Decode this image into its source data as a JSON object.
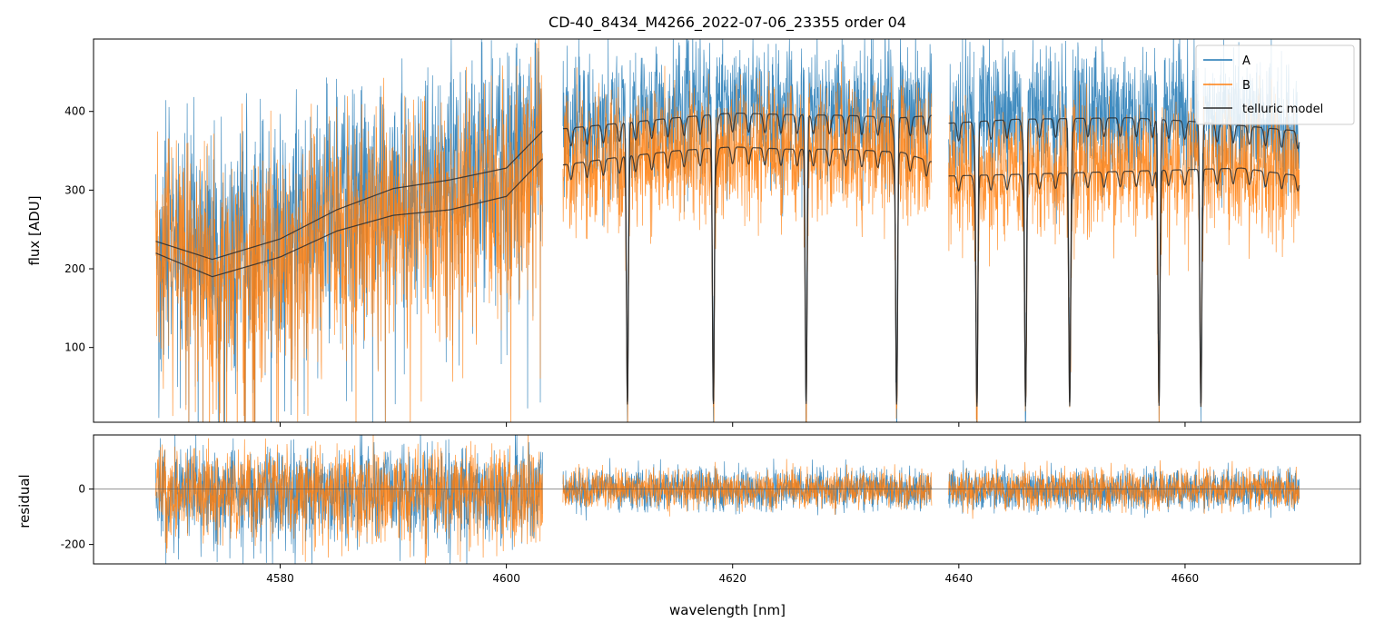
{
  "chart_data": [
    {
      "type": "line",
      "title": "CD-40_8434_M4266_2022-07-06_23355  order 04",
      "xlabel": "",
      "ylabel": "flux [ADU]",
      "xlim": [
        4563.5,
        4675.5
      ],
      "ylim": [
        5,
        492
      ],
      "yticks": [
        100,
        200,
        300,
        400
      ],
      "grid": false,
      "legend": {
        "placement": "top-right",
        "entries": [
          "A",
          "B",
          "telluric model"
        ]
      },
      "segments": [
        [
          4569.0,
          4603.2
        ],
        [
          4605.0,
          4637.6
        ],
        [
          4639.1,
          4670.1
        ]
      ],
      "series": [
        {
          "name": "A",
          "color": "#1f77b4",
          "typical_range": [
            150,
            470
          ]
        },
        {
          "name": "B",
          "color": "#ff7f0e",
          "typical_range": [
            120,
            440
          ]
        },
        {
          "name": "telluric model",
          "color": "#2b2b2b",
          "upper_curve": {
            "x": [
              4569.0,
              4574.0,
              4580.0,
              4585.0,
              4590.0,
              4595.0,
              4600.0,
              4603.2,
              4605.0,
              4610.0,
              4615.0,
              4620.0,
              4625.0,
              4630.0,
              4635.0,
              4637.6,
              4639.1,
              4645.0,
              4650.0,
              4655.0,
              4660.0,
              4665.0,
              4670.1
            ],
            "y": [
              235,
              212,
              238,
              275,
              302,
              313,
              328,
              375,
              378,
              385,
              392,
              398,
              396,
              395,
              392,
              395,
              385,
              390,
              391,
              392,
              388,
              382,
              375
            ]
          },
          "lower_curve": {
            "x": [
              4569.0,
              4574.0,
              4580.0,
              4585.0,
              4590.0,
              4595.0,
              4600.0,
              4603.2,
              4605.0,
              4610.0,
              4615.0,
              4620.0,
              4625.0,
              4630.0,
              4635.0,
              4637.6,
              4639.1,
              4645.0,
              4650.0,
              4655.0,
              4660.0,
              4665.0,
              4670.1
            ],
            "y": [
              220,
              190,
              215,
              248,
              268,
              275,
              292,
              340,
              332,
              342,
              350,
              355,
              352,
              352,
              348,
              336,
              318,
              320,
              322,
              324,
              326,
              328,
              318
            ]
          },
          "deep_lines_x": [
            4610.7,
            4618.3,
            4626.5,
            4634.5,
            4641.6,
            4645.9,
            4649.8,
            4657.7,
            4661.4
          ]
        }
      ]
    },
    {
      "type": "line",
      "title": "",
      "xlabel": "wavelength [nm]",
      "ylabel": "residual",
      "xlim": [
        4563.5,
        4675.5
      ],
      "ylim": [
        -270,
        195
      ],
      "xticks": [
        4580,
        4600,
        4620,
        4640,
        4660
      ],
      "yticks": [
        -200,
        0
      ],
      "zero_line": 0,
      "series": [
        {
          "name": "A",
          "color": "#1f77b4",
          "typical_range": [
            -120,
            120
          ]
        },
        {
          "name": "B",
          "color": "#ff7f0e",
          "typical_range": [
            -110,
            110
          ]
        }
      ]
    }
  ]
}
